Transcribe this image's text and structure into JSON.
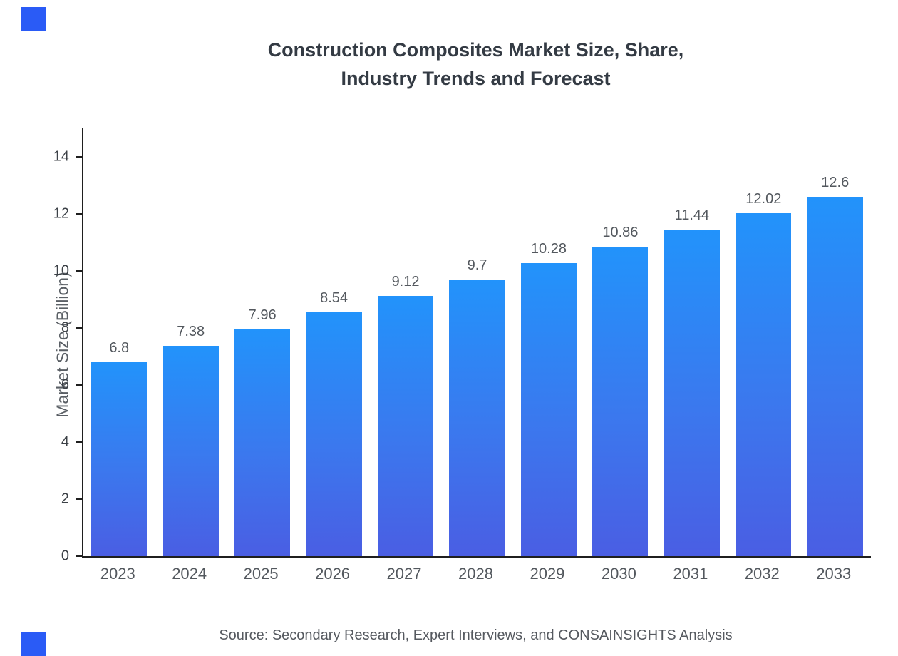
{
  "page": {
    "title_line1": "Construction Composites Market Size, Share,",
    "title_line2": "Industry Trends and Forecast",
    "source": "Source: Secondary Research, Expert Interviews, and CONSAINSIGHTS Analysis"
  },
  "colors": {
    "bar_gradient_top": "#2293fb",
    "bar_gradient_bottom": "#4a5ee3",
    "axis": "#1f1f1f",
    "text_gray": "#53585e",
    "title_text": "#343b44",
    "brand_square": "#2a5bf6"
  },
  "chart_data": {
    "type": "bar",
    "title": "Construction Composites Market Size, Share, Industry Trends and Forecast",
    "categories": [
      "2023",
      "2024",
      "2025",
      "2026",
      "2027",
      "2028",
      "2029",
      "2030",
      "2031",
      "2032",
      "2033"
    ],
    "values": [
      6.8,
      7.38,
      7.96,
      8.54,
      9.12,
      9.7,
      10.28,
      10.86,
      11.44,
      12.02,
      12.6
    ],
    "value_labels": [
      "6.8",
      "7.38",
      "7.96",
      "8.54",
      "9.12",
      "9.7",
      "10.28",
      "10.86",
      "11.44",
      "12.02",
      "12.6"
    ],
    "xlabel": "",
    "ylabel": "Market Size (Billion)",
    "ylim": [
      0,
      15
    ],
    "yticks": [
      0,
      2,
      4,
      6,
      8,
      10,
      12,
      14
    ],
    "grid": false,
    "legend": "none",
    "source_note": "Source: Secondary Research, Expert Interviews, and CONSAINSIGHTS Analysis"
  }
}
